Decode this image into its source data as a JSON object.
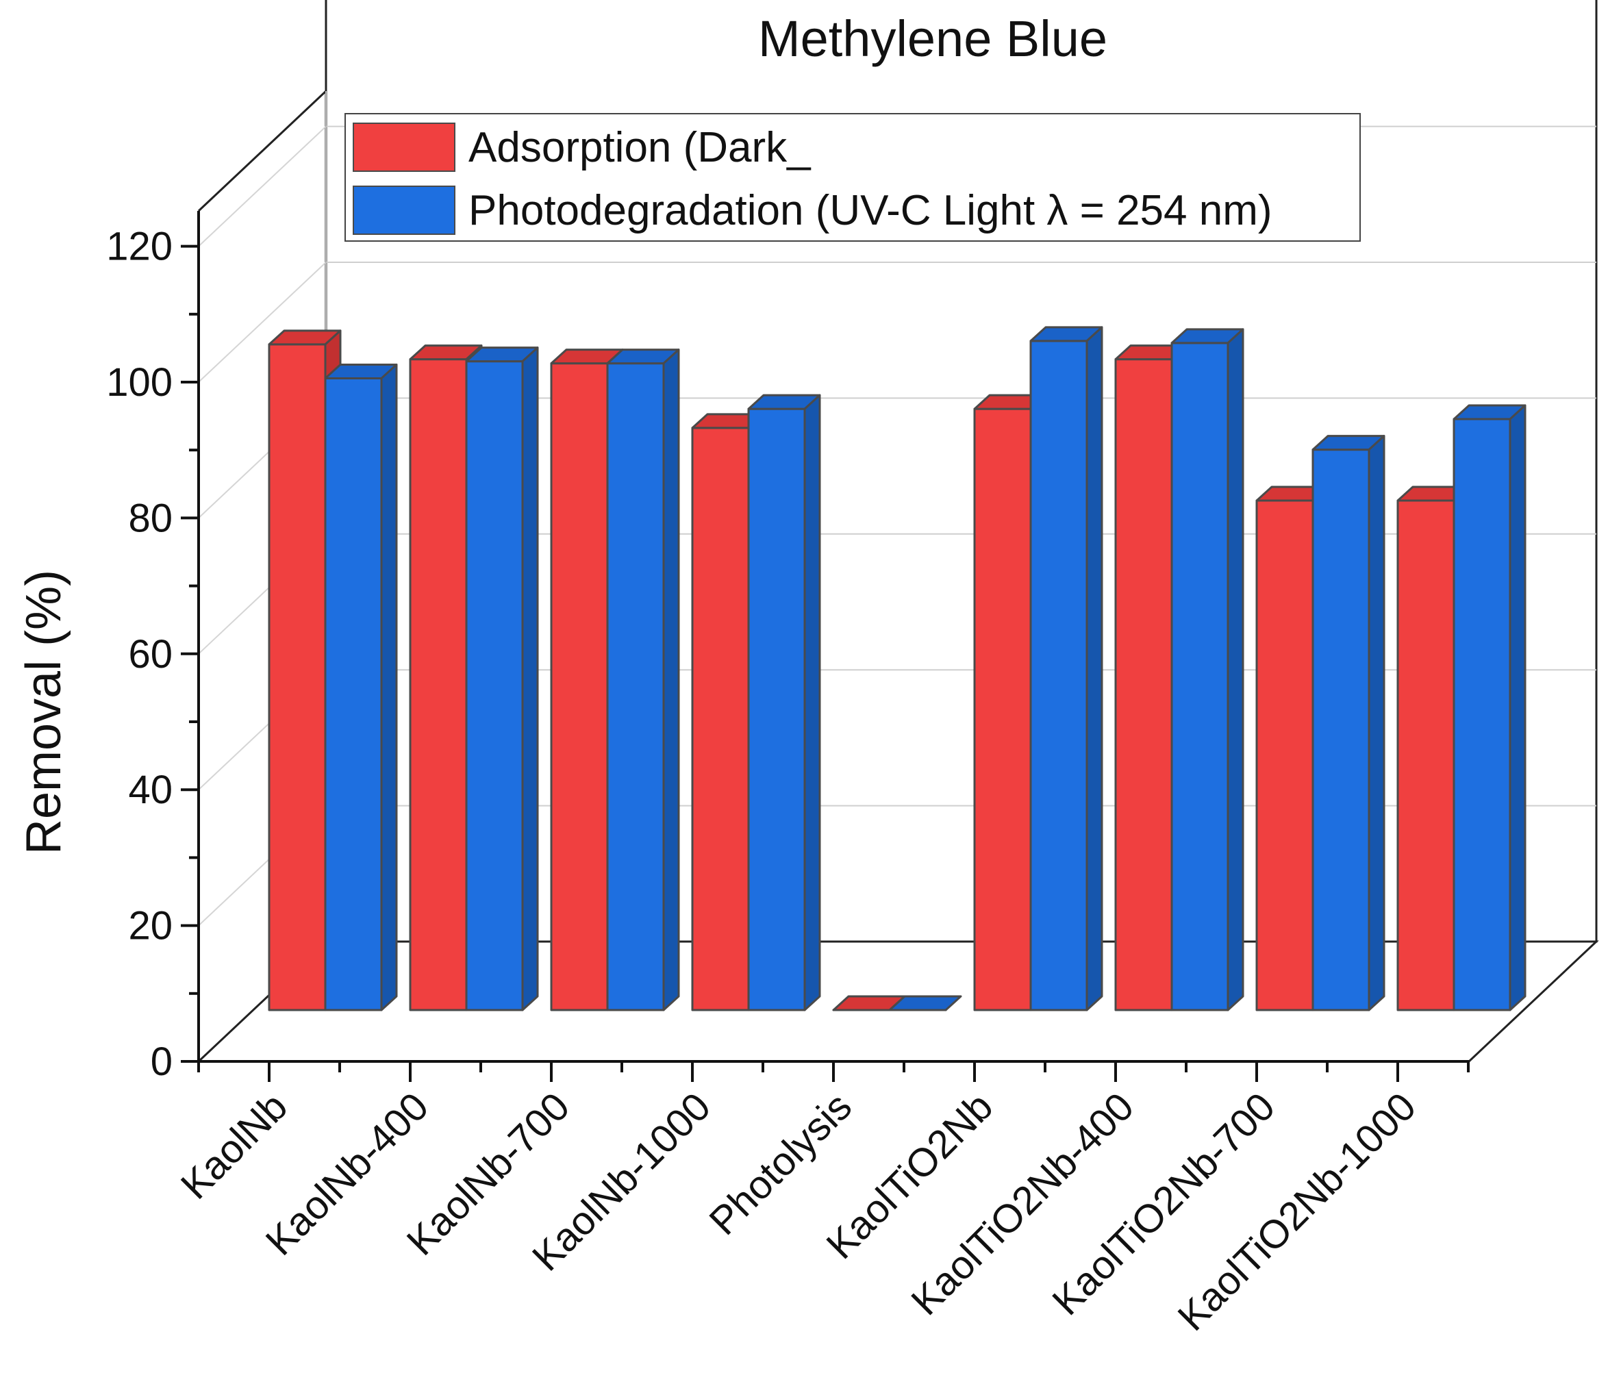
{
  "chart_data": {
    "type": "bar",
    "title": "Methylene Blue",
    "xlabel": "",
    "ylabel": "Removal (%)",
    "ylim": [
      0,
      120
    ],
    "yticks": [
      0,
      20,
      40,
      60,
      80,
      100,
      120
    ],
    "categories": [
      "KaolNb",
      "KaolNb-400",
      "KaolNb-700",
      "KaolNb-1000",
      "Photolysis",
      "KaolTiO2Nb",
      "KaolTiO2Nb-400",
      "KaolTiO2Nb-700",
      "KaolTiO2Nb-1000"
    ],
    "series": [
      {
        "name": "Adsorption (Dark_",
        "color": "#f04040",
        "side_color": "#c23030",
        "top_color": "#d63636",
        "values": [
          98,
          95.8,
          95.2,
          85.7,
          0,
          88.5,
          95.8,
          75,
          75
        ]
      },
      {
        "name": "Photodegradation (UV-C Light λ = 254 nm)",
        "color": "#1e6fe0",
        "side_color": "#1656ad",
        "top_color": "#1a62c8",
        "values": [
          93,
          95.5,
          95.2,
          88.5,
          0,
          98.5,
          98.2,
          82.5,
          87
        ]
      }
    ],
    "legend_position": "top"
  }
}
